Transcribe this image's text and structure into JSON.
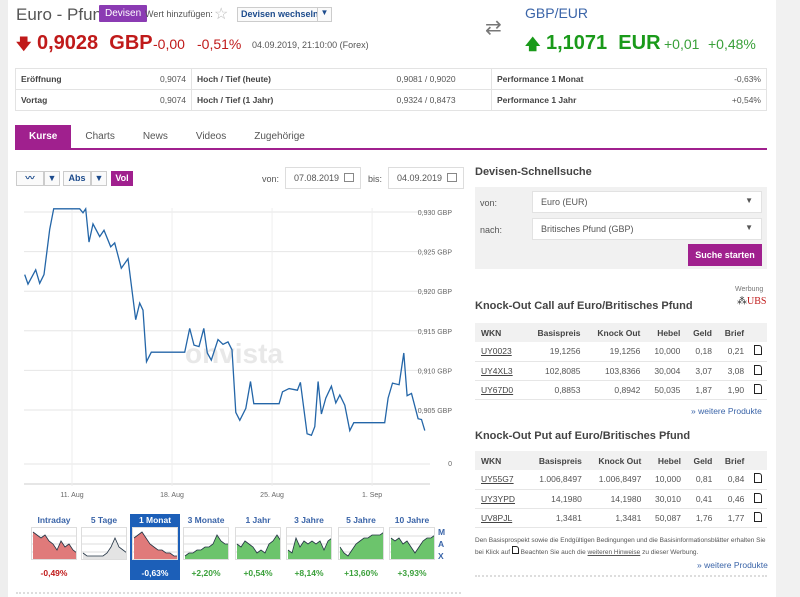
{
  "header": {
    "title": "Euro - Pfund",
    "badge": "Devisen",
    "watch_label": "Wert hinzufügen:",
    "switch_select": "Devisen wechseln",
    "price": "0,9028",
    "currency": "GBP",
    "change_abs": "-0,00",
    "change_pct": "-0,51%",
    "timestamp": "04.09.2019, 21:10:00 (Forex)",
    "inverse_pair": "GBP/EUR",
    "inverse_price": "1,1071",
    "inverse_currency": "EUR",
    "inverse_change_abs": "+0,01",
    "inverse_change_pct": "+0,48%"
  },
  "stats": [
    [
      "Eröffnung",
      "0,9074",
      "Hoch / Tief (heute)",
      "0,9081 / 0,9020",
      "Performance 1 Monat",
      "-0,63%"
    ],
    [
      "Vortag",
      "0,9074",
      "Hoch / Tief (1 Jahr)",
      "0,9324 / 0,8473",
      "Performance 1 Jahr",
      "+0,54%"
    ]
  ],
  "tabs": [
    "Kurse",
    "Charts",
    "News",
    "Videos",
    "Zugehörige"
  ],
  "chart_toolbar": {
    "mode": "Abs",
    "vol": "Vol",
    "von_label": "von:",
    "von": "07.08.2019",
    "bis_label": "bis:",
    "bis": "04.09.2019",
    "watermark": "onvista"
  },
  "chart_data": {
    "type": "line",
    "title": "Euro - Pfund",
    "xlabel": "",
    "ylabel": "GBP",
    "x_unit": "day of August 2019 (32 = 1. Sep)",
    "x_ticks": [
      {
        "x": 11,
        "label": "11. Aug"
      },
      {
        "x": 18,
        "label": "18. Aug"
      },
      {
        "x": 25,
        "label": "25. Aug"
      },
      {
        "x": 32,
        "label": "1. Sep"
      }
    ],
    "y_ticks": [
      {
        "v": 0.93,
        "label": "0,930 GBP"
      },
      {
        "v": 0.925,
        "label": "0,925 GBP"
      },
      {
        "v": 0.92,
        "label": "0,920 GBP"
      },
      {
        "v": 0.915,
        "label": "0,915 GBP"
      },
      {
        "v": 0.91,
        "label": "0,910 GBP"
      },
      {
        "v": 0.905,
        "label": "0,905 GBP"
      }
    ],
    "volume_axis_label": "0",
    "ylim": [
      0.9,
      0.931
    ],
    "grid": true,
    "series": [
      {
        "name": "EUR/GBP",
        "points": [
          [
            7.69,
            0.9221
          ],
          [
            7.92,
            0.9209
          ],
          [
            8.46,
            0.9227
          ],
          [
            8.74,
            0.921
          ],
          [
            9.04,
            0.9221
          ],
          [
            9.44,
            0.9278
          ],
          [
            9.72,
            0.9304
          ],
          [
            11.54,
            0.9304
          ],
          [
            11.77,
            0.9299
          ],
          [
            11.96,
            0.9304
          ],
          [
            12.19,
            0.9262
          ],
          [
            12.47,
            0.9285
          ],
          [
            12.94,
            0.9269
          ],
          [
            13.24,
            0.9277
          ],
          [
            13.71,
            0.9256
          ],
          [
            13.99,
            0.9261
          ],
          [
            14.45,
            0.9229
          ],
          [
            14.92,
            0.9241
          ],
          [
            15.46,
            0.9164
          ],
          [
            15.74,
            0.9185
          ],
          [
            15.97,
            0.9176
          ],
          [
            16.21,
            0.9111
          ],
          [
            16.55,
            0.9123
          ],
          [
            18.89,
            0.9123
          ],
          [
            19.24,
            0.9153
          ],
          [
            19.54,
            0.9132
          ],
          [
            19.89,
            0.913
          ],
          [
            20.22,
            0.9153
          ],
          [
            20.47,
            0.9122
          ],
          [
            20.75,
            0.9113
          ],
          [
            21.22,
            0.9139
          ],
          [
            21.57,
            0.9133
          ],
          [
            21.92,
            0.9136
          ],
          [
            22.2,
            0.9126
          ],
          [
            22.46,
            0.9047
          ],
          [
            22.74,
            0.9037
          ],
          [
            23.16,
            0.9052
          ],
          [
            23.49,
            0.9086
          ],
          [
            23.72,
            0.9058
          ],
          [
            25.49,
            0.9058
          ],
          [
            25.73,
            0.9073
          ],
          [
            26.19,
            0.9077
          ],
          [
            26.77,
            0.9075
          ],
          [
            26.98,
            0.9085
          ],
          [
            27.45,
            0.902
          ],
          [
            27.75,
            0.9018
          ],
          [
            27.99,
            0.9029
          ],
          [
            28.22,
            0.9086
          ],
          [
            28.45,
            0.9045
          ],
          [
            28.76,
            0.9065
          ],
          [
            29.15,
            0.908
          ],
          [
            29.46,
            0.9059
          ],
          [
            29.74,
            0.9069
          ],
          [
            30.09,
            0.9056
          ],
          [
            30.44,
            0.9024
          ],
          [
            30.72,
            0.9034
          ],
          [
            32.88,
            0.9034
          ],
          [
            33.12,
            0.9065
          ],
          [
            33.43,
            0.9084
          ],
          [
            33.89,
            0.9082
          ],
          [
            34.22,
            0.9122
          ],
          [
            34.45,
            0.9068
          ],
          [
            34.76,
            0.9071
          ],
          [
            35.22,
            0.9039
          ],
          [
            35.46,
            0.9038
          ],
          [
            35.69,
            0.9024
          ]
        ]
      }
    ]
  },
  "periods": [
    {
      "label": "Intraday",
      "perf": "-0,49%",
      "color": "#c01a1a",
      "fill": "#e07a7a",
      "spark": [
        9,
        8,
        7,
        8,
        6,
        5,
        3,
        6,
        4,
        5,
        3,
        2
      ]
    },
    {
      "label": "5 Tage",
      "perf": "",
      "color": "#555",
      "fill": "#e4e4e4",
      "spark": [
        2,
        1,
        1,
        1,
        1,
        1,
        2,
        4,
        7,
        4,
        3,
        2
      ]
    },
    {
      "label": "1 Monat",
      "perf": "-0,63%",
      "color": "#fff",
      "fill": "#e07a7a",
      "spark": [
        7,
        8,
        9,
        7,
        5,
        4,
        3,
        3,
        2,
        2,
        1,
        1
      ]
    },
    {
      "label": "3 Monate",
      "perf": "+2,20%",
      "color": "#3aa03a",
      "fill": "#6cc46c",
      "spark": [
        1,
        2,
        2,
        3,
        3,
        4,
        4,
        5,
        8,
        6,
        5,
        5
      ]
    },
    {
      "label": "1 Jahr",
      "perf": "+0,54%",
      "color": "#3aa03a",
      "fill": "#6cc46c",
      "spark": [
        5,
        4,
        6,
        5,
        4,
        2,
        3,
        2,
        5,
        6,
        8,
        6
      ]
    },
    {
      "label": "3 Jahre",
      "perf": "+8,14%",
      "color": "#3aa03a",
      "fill": "#6cc46c",
      "spark": [
        3,
        2,
        7,
        4,
        6,
        5,
        6,
        5,
        6,
        3,
        6,
        7
      ]
    },
    {
      "label": "5 Jahre",
      "perf": "+13,60%",
      "color": "#3aa03a",
      "fill": "#6cc46c",
      "spark": [
        4,
        2,
        1,
        3,
        5,
        6,
        7,
        7,
        8,
        8,
        8,
        9
      ]
    },
    {
      "label": "10 Jahre",
      "perf": "+3,93%",
      "color": "#3aa03a",
      "fill": "#6cc46c",
      "spark": [
        7,
        6,
        7,
        5,
        6,
        4,
        2,
        4,
        6,
        7,
        7,
        8
      ]
    }
  ],
  "max_label": [
    "M",
    "A",
    "X"
  ],
  "quicksearch": {
    "title": "Devisen-Schnellsuche",
    "from_label": "von:",
    "from": "Euro (EUR)",
    "to_label": "nach:",
    "to": "Britisches Pfund (GBP)",
    "button": "Suche starten",
    "ad_label": "Werbung",
    "ad_brand": "UBS"
  },
  "ko_call": {
    "title": "Knock-Out Call auf Euro/Britisches Pfund",
    "headers": [
      "WKN",
      "Basispreis",
      "Knock Out",
      "Hebel",
      "Geld",
      "Brief"
    ],
    "rows": [
      [
        "UY0023",
        "19,1256",
        "19,1256",
        "10,000",
        "0,18",
        "0,21"
      ],
      [
        "UY4XL3",
        "102,8085",
        "103,8366",
        "30,004",
        "3,07",
        "3,08"
      ],
      [
        "UY67D0",
        "0,8853",
        "0,8942",
        "50,035",
        "1,87",
        "1,90"
      ]
    ],
    "more": "» weitere Produkte"
  },
  "ko_put": {
    "title": "Knock-Out Put auf Euro/Britisches Pfund",
    "headers": [
      "WKN",
      "Basispreis",
      "Knock Out",
      "Hebel",
      "Geld",
      "Brief"
    ],
    "rows": [
      [
        "UY55G7",
        "1.006,8497",
        "1.006,8497",
        "10,000",
        "0,81",
        "0,84"
      ],
      [
        "UY3YPD",
        "14,1980",
        "14,1980",
        "30,010",
        "0,41",
        "0,46"
      ],
      [
        "UV8PJL",
        "1,3481",
        "1,3481",
        "50,087",
        "1,76",
        "1,77"
      ]
    ],
    "more": "» weitere Produkte"
  },
  "disclaimer": {
    "part1": "Den Basisprospekt sowie die Endgültigen Bedingungen und die Basisinformationsblätter erhalten Sie bei Klick auf",
    "part2": "Beachten Sie auch die",
    "link": "weiteren Hinweise",
    "part3": "zu dieser Werbung."
  }
}
